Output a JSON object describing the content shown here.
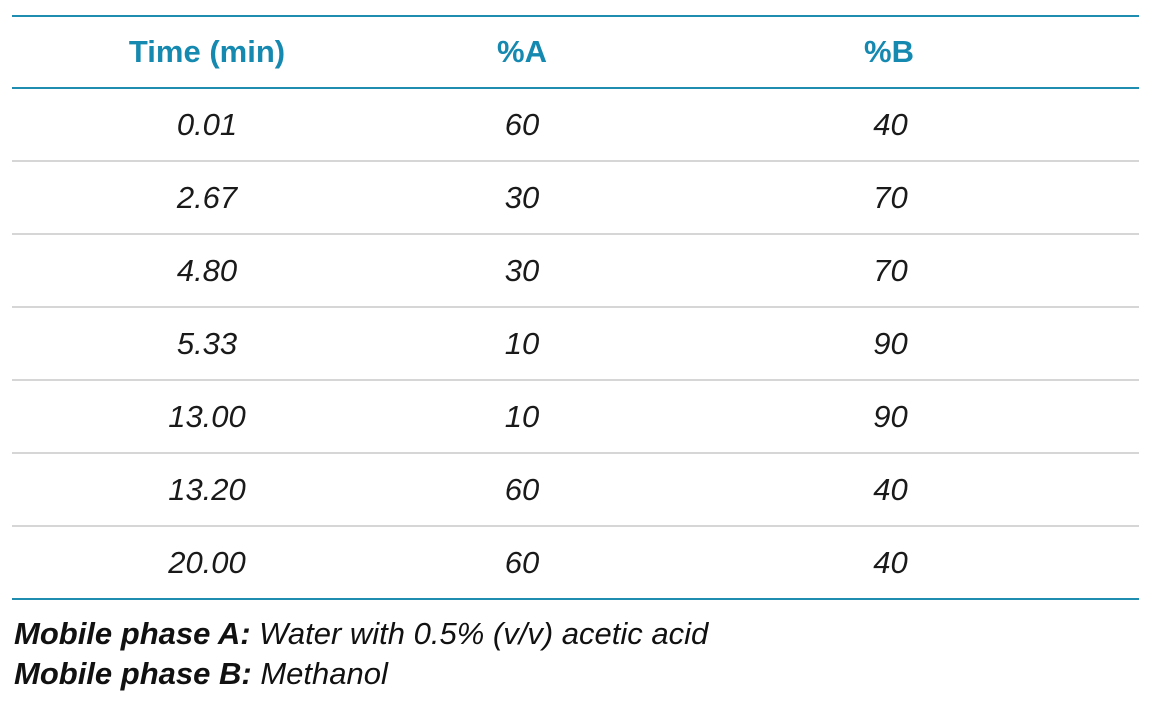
{
  "table": {
    "headers": [
      "Time (min)",
      "%A",
      "%B"
    ],
    "rows": [
      [
        "0.01",
        "60",
        "40"
      ],
      [
        "2.67",
        "30",
        "70"
      ],
      [
        "4.80",
        "30",
        "70"
      ],
      [
        "5.33",
        "10",
        "90"
      ],
      [
        "13.00",
        "10",
        "90"
      ],
      [
        "13.20",
        "60",
        "40"
      ],
      [
        "20.00",
        "60",
        "40"
      ]
    ]
  },
  "footnotes": [
    {
      "label": "Mobile phase A:",
      "text": " Water with 0.5% (v/v) acetic acid"
    },
    {
      "label": "Mobile phase B:",
      "text": " Methanol"
    }
  ],
  "colors": {
    "accent": "#1689b0",
    "rule": "#1f8db0",
    "row_divider": "#d6d6d6"
  }
}
